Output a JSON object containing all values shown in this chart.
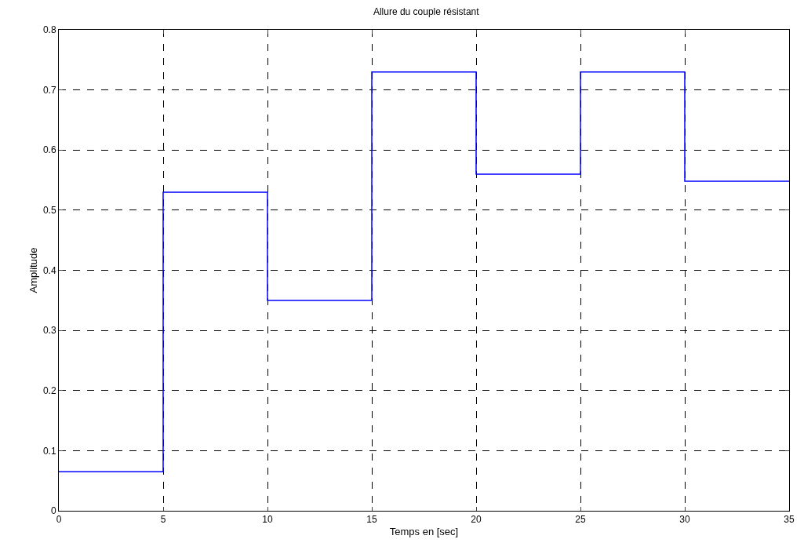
{
  "chart_data": {
    "type": "step",
    "title": "Allure du couple résistant",
    "xlabel": "Temps en [sec]",
    "ylabel": "Amplitude",
    "x": [
      0,
      5,
      10,
      15,
      20,
      25,
      30,
      35
    ],
    "series": [
      {
        "color": "#0000ff",
        "values": [
          0.065,
          0.53,
          0.35,
          0.73,
          0.56,
          0.73,
          0.548,
          0.548
        ]
      }
    ],
    "xlim": [
      0,
      35
    ],
    "xticks": [
      0,
      5,
      10,
      15,
      20,
      25,
      30,
      35
    ],
    "ylim": [
      0,
      0.8
    ],
    "yticks": [
      0,
      0.1,
      0.2,
      0.3,
      0.4,
      0.5,
      0.6,
      0.7,
      0.8
    ],
    "grid": true,
    "line_style": "solid"
  }
}
